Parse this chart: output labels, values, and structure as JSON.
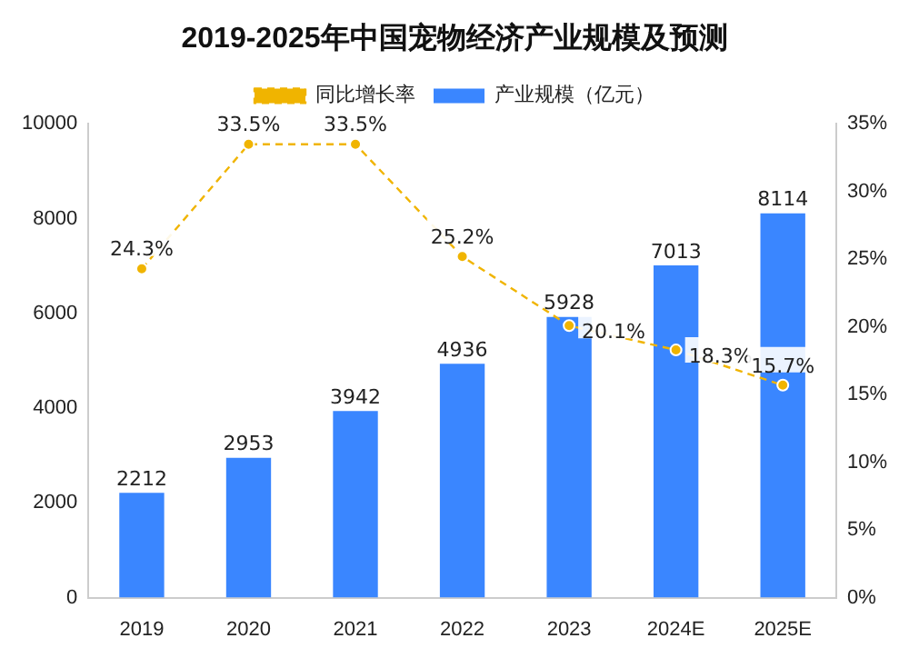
{
  "chart_data": {
    "type": "bar",
    "title": "2019-2025年中国宠物经济产业规模及预测",
    "categories": [
      "2019",
      "2020",
      "2021",
      "2022",
      "2023",
      "2024E",
      "2025E"
    ],
    "series": [
      {
        "name": "产业规模（亿元）",
        "color": "#3a86ff",
        "values": [
          2212,
          2953,
          3942,
          4936,
          5928,
          7013,
          8114
        ],
        "value_labels": [
          "2212",
          "2953",
          "3942",
          "4936",
          "5928",
          "7013",
          "8114"
        ]
      },
      {
        "name": "同比增长率",
        "type": "line",
        "axis": "y2",
        "color": "#f0b400",
        "line_style": "dashed",
        "marker": "circle",
        "values": [
          24.3,
          33.5,
          33.5,
          25.2,
          20.1,
          18.3,
          15.7
        ],
        "value_labels": [
          "24.3%",
          "33.5%",
          "33.5%",
          "25.2%",
          "20.1%",
          "18.3%",
          "15.7%"
        ]
      }
    ],
    "ylim": [
      0,
      10000
    ],
    "yticks": [
      0,
      2000,
      4000,
      6000,
      8000,
      10000
    ],
    "y2lim": [
      0,
      35
    ],
    "y2ticks": [
      {
        "value": 0,
        "label": "0%"
      },
      {
        "value": 5,
        "label": "5%"
      },
      {
        "value": 10,
        "label": "10%"
      },
      {
        "value": 15,
        "label": "15%"
      },
      {
        "value": 20,
        "label": "20%"
      },
      {
        "value": 25,
        "label": "25%"
      },
      {
        "value": 30,
        "label": "30%"
      },
      {
        "value": 35,
        "label": "35%"
      }
    ],
    "grid": false,
    "legend": "top"
  }
}
